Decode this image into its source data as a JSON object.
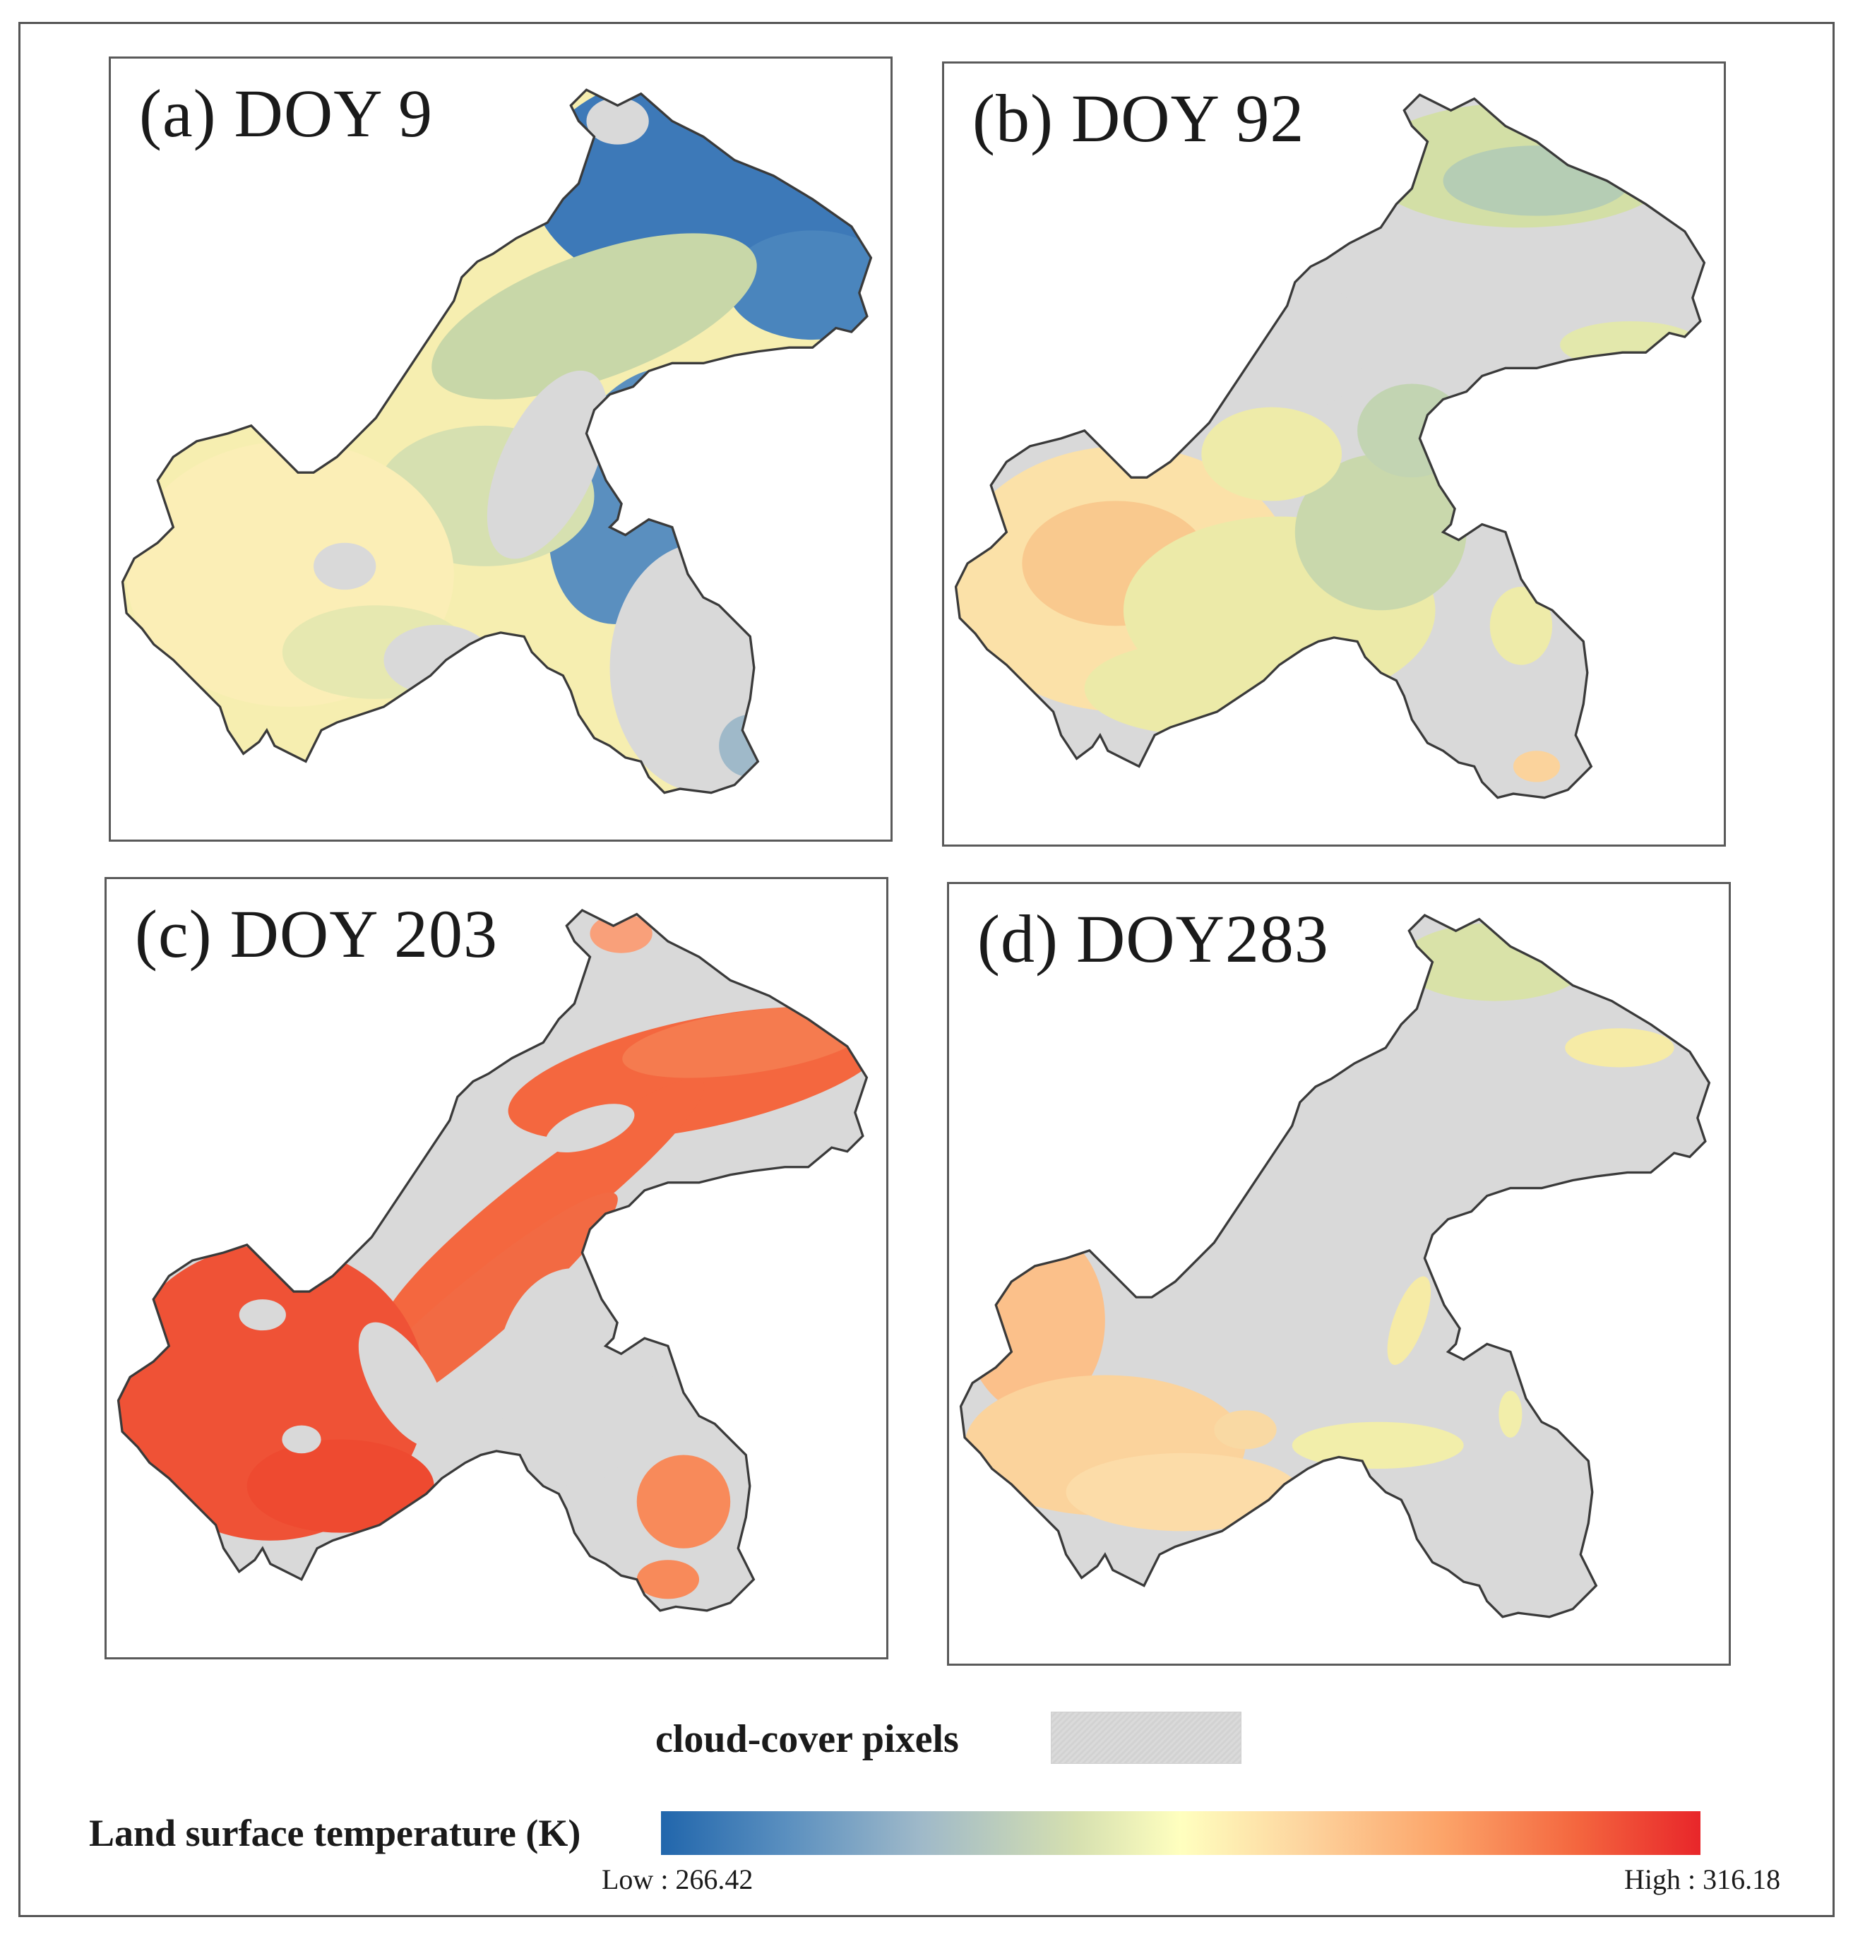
{
  "panels": [
    {
      "label": "(a) DOY 9",
      "dominant": "cold",
      "colors": [
        "#3e7ab8",
        "#d3dfa6",
        "#fdf3b3"
      ]
    },
    {
      "label": "(b) DOY 92",
      "dominant": "cool-mild",
      "colors": [
        "#b5cdb4",
        "#eaeca8",
        "#fbd6a0"
      ]
    },
    {
      "label": "(c) DOY 203",
      "dominant": "hot",
      "colors": [
        "#f4673f",
        "#ef5236",
        "#f88a5a"
      ]
    },
    {
      "label": "(d) DOY283",
      "dominant": "mild",
      "colors": [
        "#fbc08a",
        "#f2eeaa",
        "#fbd39c"
      ]
    }
  ],
  "legend": {
    "cloud_label": "cloud-cover pixels",
    "cloud_color": "#d6d6d6",
    "lst_label": "Land surface temperature (K)",
    "low_label": "Low : 266.42",
    "high_label": "High : 316.18",
    "low_value": 266.42,
    "high_value": 316.18,
    "gradient": [
      "#2166ac",
      "#9fb9c9",
      "#ffffbf",
      "#fca56a",
      "#e8262a"
    ]
  }
}
